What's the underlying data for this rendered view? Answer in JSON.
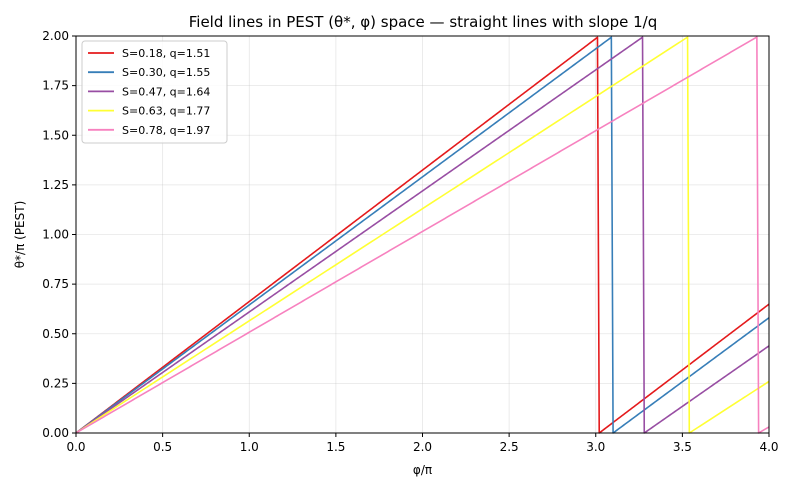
{
  "chart_data": {
    "type": "line",
    "title": "Field lines in PEST (θ*, φ) space — straight lines with slope 1/q",
    "xlabel": "φ/π",
    "ylabel": "θ*/π (PEST)",
    "xlim": [
      0,
      4
    ],
    "ylim": [
      0,
      2
    ],
    "xticks": [
      0,
      0.5,
      1,
      1.5,
      2,
      2.5,
      3,
      3.5,
      4
    ],
    "yticks": [
      0,
      0.25,
      0.5,
      0.75,
      1,
      1.25,
      1.5,
      1.75,
      2
    ],
    "xtick_labels": [
      "0.0",
      "0.5",
      "1.0",
      "1.5",
      "2.0",
      "2.5",
      "3.0",
      "3.5",
      "4.0"
    ],
    "ytick_labels": [
      "0.00",
      "0.25",
      "0.50",
      "0.75",
      "1.00",
      "1.25",
      "1.50",
      "1.75",
      "2.00"
    ],
    "grid": true,
    "legend_position": "top-left",
    "series": [
      {
        "name": "S=0.18, q=1.51",
        "q": 1.51,
        "color": "#e41a1c"
      },
      {
        "name": "S=0.30, q=1.55",
        "q": 1.55,
        "color": "#377eb8"
      },
      {
        "name": "S=0.47, q=1.64",
        "q": 1.64,
        "color": "#984ea3"
      },
      {
        "name": "S=0.63, q=1.77",
        "q": 1.77,
        "color": "#ffff33"
      },
      {
        "name": "S=0.78, q=1.97",
        "q": 1.97,
        "color": "#f781bf"
      }
    ]
  }
}
